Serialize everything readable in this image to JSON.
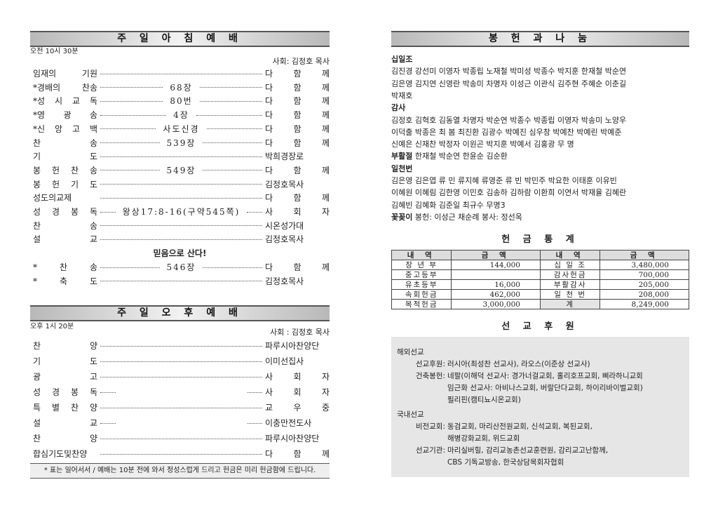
{
  "morning": {
    "title": "주 일 아 침 예 배",
    "time": "오전 10시 30분",
    "host": "사회: 김정호 목사",
    "rows": [
      {
        "label": "임재의 기원",
        "mid": "",
        "right": "다 함 께"
      },
      {
        "label": "*경배의 찬송",
        "mid": "68장",
        "right": "다 함 께"
      },
      {
        "label": "*성 시 교 독",
        "mid": "80번",
        "right": "다 함 께"
      },
      {
        "label": "*영 광 송",
        "mid": "4장",
        "right": "다 함 께"
      },
      {
        "label": "*신 앙 고 백",
        "mid": "사도신경",
        "right": "다 함 께"
      },
      {
        "label": "찬 송",
        "mid": "539장",
        "right": "다 함 께"
      },
      {
        "label": "기 도",
        "mid": "",
        "right": "박희경장로"
      },
      {
        "label": "봉 헌 찬 송",
        "mid": "549장",
        "right": "다 함 께"
      },
      {
        "label": "봉 헌 기 도",
        "mid": "",
        "right": "김정호목사"
      },
      {
        "label": "성도의교제",
        "mid": "",
        "right": "다 함 께"
      },
      {
        "label": "성 경 봉 독",
        "mid": "왕상17:8-16(구약545쪽)",
        "right": "사 회 자"
      },
      {
        "label": "찬 송",
        "mid": "",
        "right": "시온성가대"
      },
      {
        "label": "설 교",
        "mid": "",
        "right": "김정호목사"
      }
    ],
    "sermon_title": "믿음으로 산다!",
    "rows2": [
      {
        "label": "* 찬 송",
        "mid": "546장",
        "right": "다 함 께"
      },
      {
        "label": "* 축 도",
        "mid": "",
        "right": "김정호목사"
      }
    ]
  },
  "afternoon": {
    "title": "주 일 오 후 예 배",
    "time": "오후 1시 20분",
    "host": "사회 : 김정호 목사",
    "rows": [
      {
        "label": "찬 양",
        "mid": "",
        "right": "파루시아찬양단"
      },
      {
        "label": "기 도",
        "mid": "",
        "right": "이미선집사"
      },
      {
        "label": "광 고",
        "mid": "",
        "right": "사 회 자"
      },
      {
        "label": "성 경 봉 독",
        "mid": " ",
        "right": "사 회 자"
      },
      {
        "label": "특 별 찬 양",
        "mid": "",
        "right": "교 우 중"
      },
      {
        "label": "설 교",
        "mid": " ",
        "right": "이충만전도사"
      },
      {
        "label": "찬 양",
        "mid": "",
        "right": "파루시아찬양단"
      },
      {
        "label": "합심기도및찬양",
        "mid": "",
        "right": "다 함 께"
      }
    ],
    "footnote": "* 표는 일어서서 / 예배는 10분 전에 와서 정성스럽게 드리고 헌금은 미리 헌금함에 드립니다."
  },
  "offering": {
    "title": "봉 헌 과 나 눔",
    "lines": [
      {
        "bold": "십일조",
        "text": ""
      },
      {
        "bold": "",
        "text": "김진경 강선미 이영자 박종립 노재철 박미성 박종수 박지훈 한재철 박순연"
      },
      {
        "bold": "",
        "text": "김은영 김지연 신영란 박송미 차명자 이성근 이관식 김주현 주혜순 이춘길"
      },
      {
        "bold": "",
        "text": "박재호"
      },
      {
        "bold": "감사",
        "text": ""
      },
      {
        "bold": "",
        "text": "김정호 김혁호 김동열 차명자 박순연 박종수 박종립 이영자 박송미 노양우"
      },
      {
        "bold": "",
        "text": "이덕출 박종은 최  봄 최진환 김광수 박예진 심우창 박예찬 박예린 박예준"
      },
      {
        "bold": "",
        "text": "신예은 신재찬 박정자 이원곤 박지훈 박예서 김홍광 무  명"
      },
      {
        "bold": "부활절",
        "text": "한재철 박순연 한윤순 김순환",
        "bold_first": true
      },
      {
        "bold": "일천번",
        "text": ""
      },
      {
        "bold": "",
        "text": "김은영 김은엽 류  민 류지혜 류영준 류  빈 박민주 박요한 이태훈 이유빈"
      },
      {
        "bold": "",
        "text": "이혜원 이혜림 김한영 이민호 김송하 김하람 이환희 이연서 박재율 김혜란"
      },
      {
        "bold": "",
        "text": "김혜빈 김혜화 김준일 최규수 무명3"
      },
      {
        "bold": "꽃꽂이",
        "text": "봉헌: 이성근 채순례  봉사: 정선옥",
        "bold_first": true
      }
    ]
  },
  "stats": {
    "title": "헌 금 통 계",
    "headers": [
      "내 역",
      "금 액",
      "내 역",
      "금 액"
    ],
    "rows": [
      [
        "장 년 부",
        "144,000",
        "십 일 조",
        "3,480,000"
      ],
      [
        "중고등부",
        "",
        "감사헌금",
        "700,000"
      ],
      [
        "유초등부",
        "16,000",
        "부활감사",
        "205,000"
      ],
      [
        "속회헌금",
        "462,000",
        "일 천 번",
        "208,000"
      ],
      [
        "목적헌금",
        "3,000,000",
        "계",
        "8,249,000"
      ]
    ]
  },
  "mission": {
    "title": "선 교 후 원",
    "groups": [
      {
        "name": "해외선교",
        "items": [
          {
            "label": "선교후원:",
            "lines": [
              "러시아(최성찬 선교사), 라오스(이준상 선교사)"
            ]
          },
          {
            "label": "건축봉헌:",
            "lines": [
              "네팔(이해덕 선교사: 경가너걸교회, 홀리호프교회, 삐라하니교회",
              "임근화 선교사: 아비나스교회, 버랄단다교회, 하이리바이벌교회)",
              "필리핀(캠티뇨시온교회)"
            ]
          }
        ]
      },
      {
        "name": "국내선교",
        "items": [
          {
            "label": "비전교회:",
            "lines": [
              "동검교회, 마리산전원교회, 신석교회, 복된교회,",
              "해병강화교회, 위드교회"
            ]
          },
          {
            "label": "선교기관:",
            "lines": [
              "마리실버힐, 감리교농촌선교훈련원, 감리교고난함께,",
              "CBS 기독교방송, 한국상담목회자협회"
            ]
          }
        ]
      }
    ]
  }
}
